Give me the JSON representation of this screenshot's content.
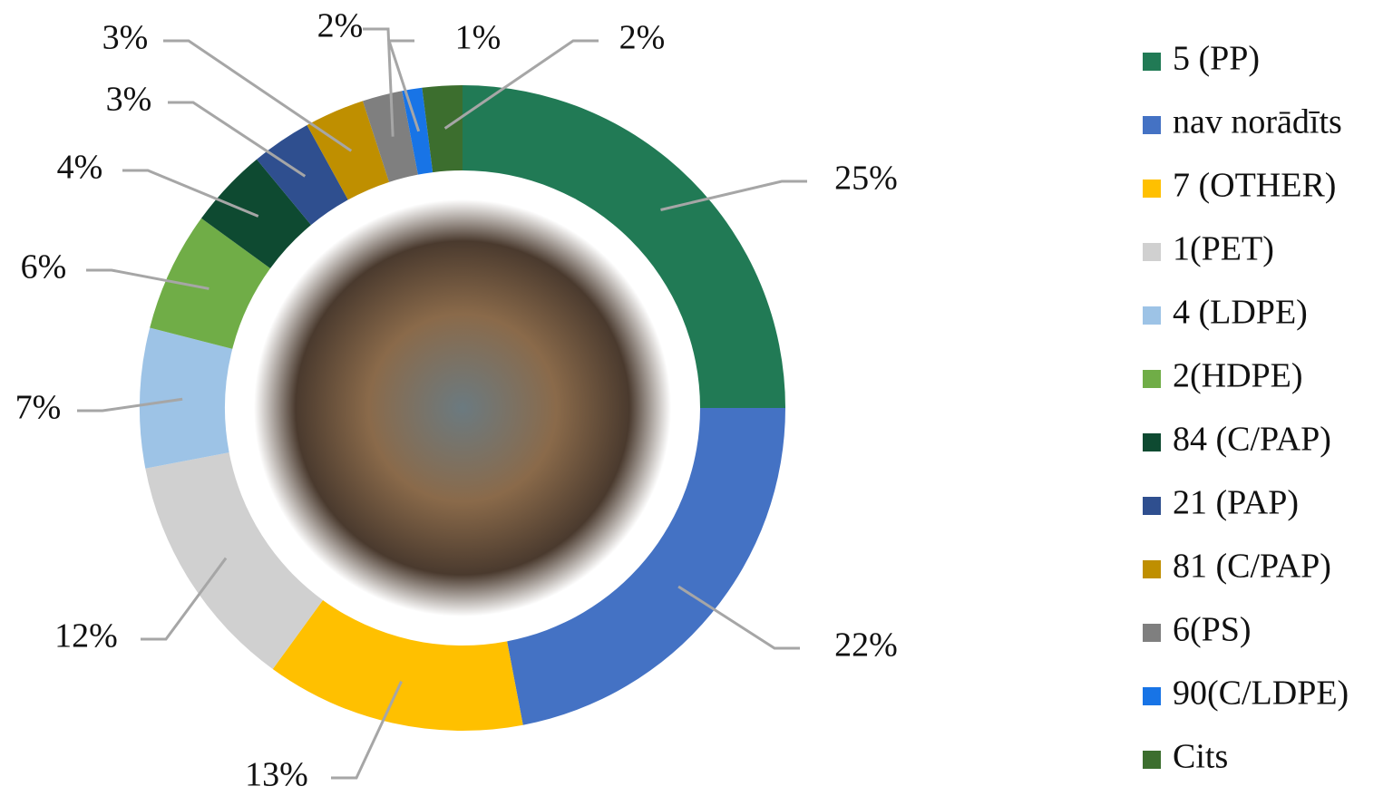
{
  "chart_data": {
    "type": "pie",
    "categories": [
      "5 (PP)",
      "nav norādīts",
      "7 (OTHER)",
      "1(PET)",
      "4 (LDPE)",
      "2(HDPE)",
      "84 (C/PAP)",
      "21 (PAP)",
      "81 (C/PAP)",
      "6(PS)",
      "90(C/LDPE)",
      "Cits"
    ],
    "values": [
      25,
      22,
      13,
      12,
      7,
      6,
      4,
      3,
      3,
      2,
      1,
      2
    ],
    "value_labels": [
      "25%",
      "22%",
      "13%",
      "12%",
      "7%",
      "6%",
      "4%",
      "3%",
      "3%",
      "2%",
      "1%",
      "2%"
    ],
    "colors": [
      "#217a55",
      "#4472c4",
      "#ffc000",
      "#d0d0d0",
      "#9dc3e6",
      "#70ad47",
      "#0e4a31",
      "#2f4f8f",
      "#bf8f00",
      "#7f7f7f",
      "#1874e6",
      "#3c6e2e"
    ],
    "legend": "right"
  }
}
